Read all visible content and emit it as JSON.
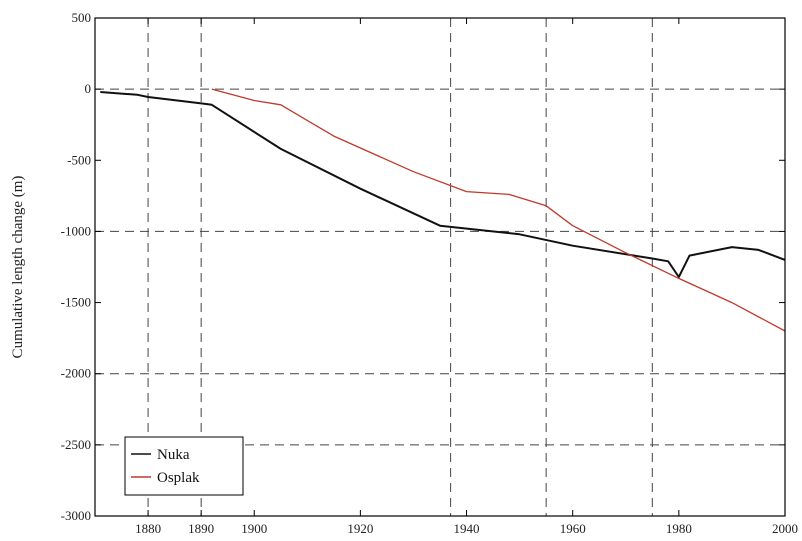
{
  "chart_data": {
    "type": "line",
    "title": "",
    "xlabel": "",
    "ylabel": "Cumulative length change (m)",
    "xlim": [
      1870,
      2000
    ],
    "ylim": [
      -3000,
      500
    ],
    "x_ticks": [
      1880,
      1890,
      1900,
      1920,
      1940,
      1960,
      1980,
      2000
    ],
    "x_tick_labels": [
      "1880",
      "1890",
      "1900",
      "1920",
      "1940",
      "1960",
      "1980",
      "2000"
    ],
    "y_ticks": [
      500,
      0,
      -500,
      -1000,
      -1500,
      -2000,
      -2500,
      -3000
    ],
    "y_tick_labels": [
      "500",
      "0",
      "-500",
      "-1000",
      "-1500",
      "-2000",
      "-2500",
      "-3000"
    ],
    "grid_x": [
      1880,
      1890,
      1937,
      1955,
      1975
    ],
    "grid_y": [
      0,
      -1000,
      -2000,
      -2500
    ],
    "grid": true,
    "legend_position": "bottom-left",
    "series": [
      {
        "name": "Nuka",
        "color": "#111111",
        "points": [
          [
            1871,
            -20
          ],
          [
            1878,
            -40
          ],
          [
            1880,
            -55
          ],
          [
            1890,
            -100
          ],
          [
            1892,
            -110
          ],
          [
            1905,
            -420
          ],
          [
            1920,
            -700
          ],
          [
            1935,
            -960
          ],
          [
            1950,
            -1020
          ],
          [
            1960,
            -1100
          ],
          [
            1975,
            -1190
          ],
          [
            1978,
            -1210
          ],
          [
            1980,
            -1320
          ],
          [
            1980.8,
            -1260
          ],
          [
            1982,
            -1170
          ],
          [
            1990,
            -1110
          ],
          [
            1995,
            -1130
          ],
          [
            2000,
            -1200
          ]
        ]
      },
      {
        "name": "Osplak",
        "color": "#c0392b",
        "points": [
          [
            1892,
            0
          ],
          [
            1900,
            -80
          ],
          [
            1905,
            -110
          ],
          [
            1915,
            -330
          ],
          [
            1930,
            -580
          ],
          [
            1940,
            -720
          ],
          [
            1948,
            -740
          ],
          [
            1955,
            -820
          ],
          [
            1960,
            -960
          ],
          [
            1970,
            -1150
          ],
          [
            1980,
            -1330
          ],
          [
            1990,
            -1500
          ],
          [
            2000,
            -1700
          ]
        ]
      }
    ]
  }
}
